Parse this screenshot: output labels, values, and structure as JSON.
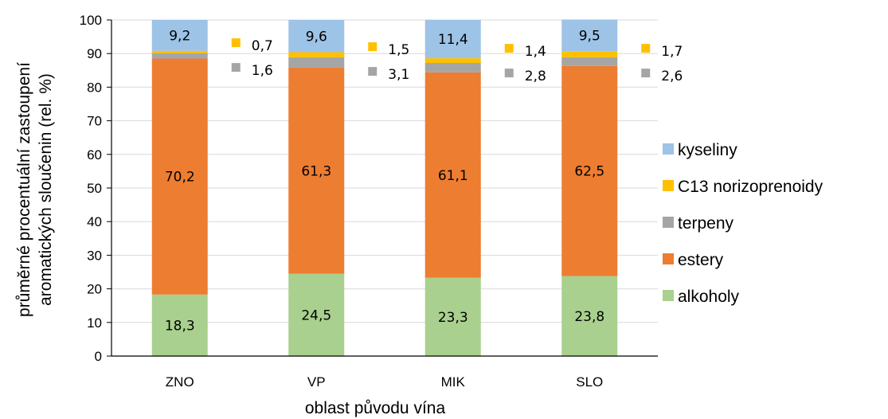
{
  "chart_data": {
    "type": "bar",
    "stacked": true,
    "title": "",
    "xlabel": "oblast původu vína",
    "ylabel_lines": [
      "průměrné procentuální zastoupení",
      "aromatických sloučenin (rel. %)"
    ],
    "ylim": [
      0,
      100
    ],
    "yticks": [
      "0",
      "10",
      "20",
      "30",
      "40",
      "50",
      "60",
      "70",
      "80",
      "90",
      "100"
    ],
    "grid": true,
    "legend_position": "right",
    "categories": [
      "ZNO",
      "VP",
      "MIK",
      "SLO"
    ],
    "series": [
      {
        "name": "alkoholy",
        "color": "#a9d08e",
        "values": [
          18.3,
          24.5,
          23.3,
          23.8
        ],
        "labels": [
          "18,3",
          "24,5",
          "23,3",
          "23,8"
        ]
      },
      {
        "name": "estery",
        "color": "#ed7d31",
        "values": [
          70.2,
          61.3,
          61.1,
          62.5
        ],
        "labels": [
          "70,2",
          "61,3",
          "61,1",
          "62,5"
        ]
      },
      {
        "name": "terpeny",
        "color": "#a5a5a5",
        "values": [
          1.6,
          3.1,
          2.8,
          2.6
        ],
        "labels": [
          "1,6",
          "3,1",
          "2,8",
          "2,6"
        ]
      },
      {
        "name": "C13 norizoprenoidy",
        "color": "#ffc000",
        "values": [
          0.7,
          1.5,
          1.4,
          1.7
        ],
        "labels": [
          "0,7",
          "1,5",
          "1,4",
          "1,7"
        ]
      },
      {
        "name": "kyseliny",
        "color": "#9dc3e6",
        "values": [
          9.2,
          9.6,
          11.4,
          9.5
        ],
        "labels": [
          "9,2",
          "9,6",
          "11,4",
          "9,5"
        ]
      }
    ],
    "legend_order": [
      "kyseliny",
      "C13 norizoprenoidy",
      "terpeny",
      "estery",
      "alkoholy"
    ]
  }
}
